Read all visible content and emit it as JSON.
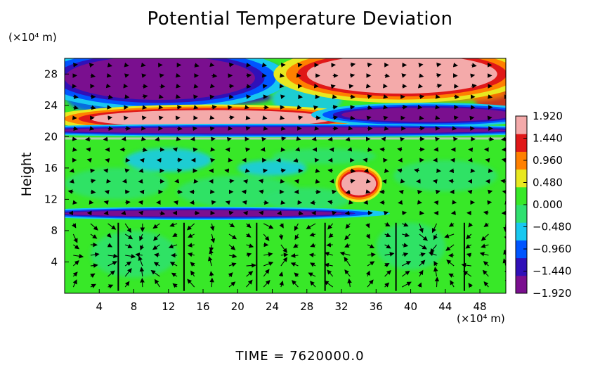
{
  "chart_data": {
    "type": "heatmap",
    "title": "Potential Temperature Deviation",
    "ylabel": "Height",
    "y_unit": "(×10⁴ m)",
    "x_unit": "(×10⁴ m)",
    "xlim": [
      0,
      51
    ],
    "ylim": [
      0,
      30
    ],
    "x_ticks": [
      4,
      8,
      12,
      16,
      20,
      24,
      28,
      32,
      36,
      40,
      44,
      48
    ],
    "y_ticks": [
      4,
      8,
      12,
      16,
      20,
      24,
      28
    ],
    "colorbar": {
      "range": [
        -1.92,
        1.92
      ],
      "tick_labels": [
        "1.920",
        "1.440",
        "0.960",
        "0.480",
        "0.000",
        "−0.480",
        "−0.960",
        "−1.440",
        "−1.920"
      ],
      "colors": [
        "#7a0f8f",
        "#3010b8",
        "#0055ff",
        "#18c8f0",
        "#30e070",
        "#38e828",
        "#e8e820",
        "#ff8000",
        "#e01818",
        "#f4aaaa"
      ]
    },
    "features": [
      {
        "kind": "negative",
        "x": 11,
        "y": 27.5,
        "rx": 11,
        "ry": 2.8,
        "value": -1.92
      },
      {
        "kind": "positive",
        "x": 39,
        "y": 28,
        "rx": 11,
        "ry": 2.5,
        "value": 1.92
      },
      {
        "kind": "positive",
        "x": 17,
        "y": 22.3,
        "rx": 14,
        "ry": 1.1,
        "value": 1.92
      },
      {
        "kind": "negative",
        "x": 42,
        "y": 22.8,
        "rx": 10,
        "ry": 0.9,
        "value": -1.92
      },
      {
        "kind": "negative",
        "x": 25,
        "y": 20.8,
        "rx": 26,
        "ry": 0.4,
        "value": -1.92
      },
      {
        "kind": "negative",
        "x": 16,
        "y": 10.2,
        "rx": 16,
        "ry": 0.4,
        "value": -1.44
      },
      {
        "kind": "positive",
        "x": 34,
        "y": 14,
        "rx": 2,
        "ry": 1.5,
        "value": 1.44
      }
    ],
    "vector_field": "wind vectors overlay (black arrows)"
  },
  "footer": "TIME  =  7620000.0"
}
